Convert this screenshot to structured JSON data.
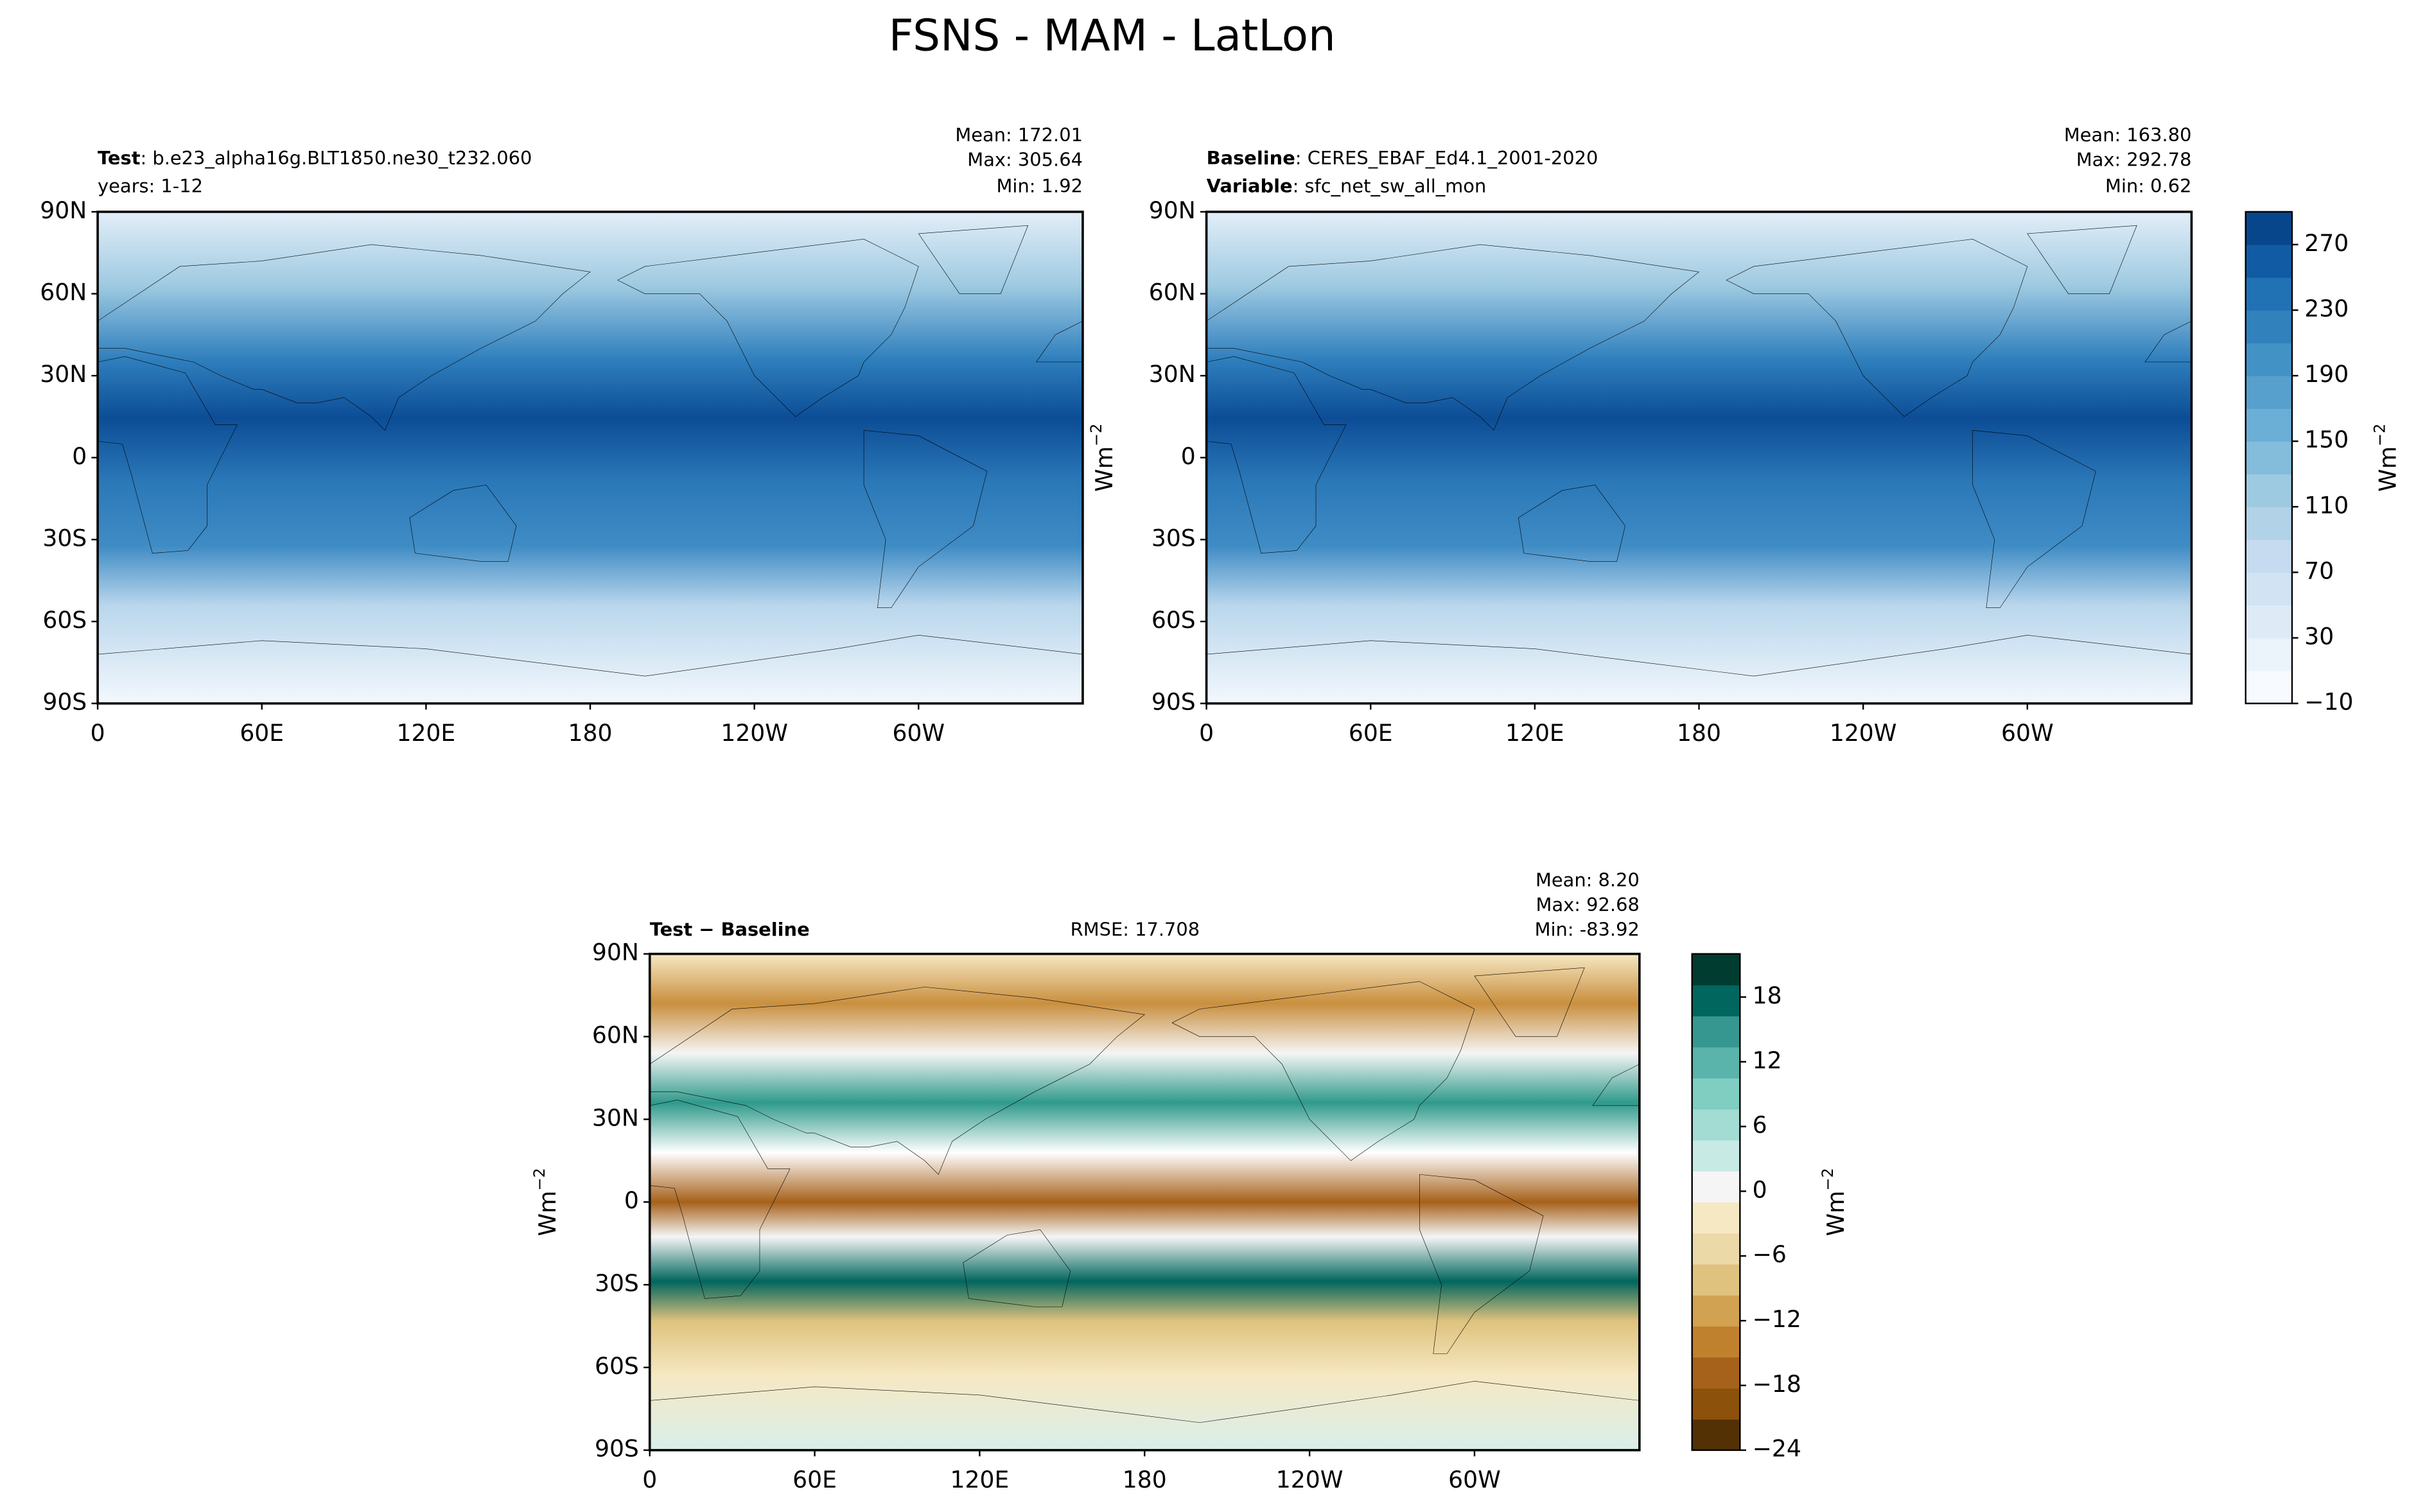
{
  "title": "FSNS - MAM - LatLon",
  "units": {
    "base": "Wm",
    "exp": "−2"
  },
  "map_axes": {
    "xlim": [
      0,
      360
    ],
    "ylim": [
      -90,
      90
    ],
    "xticks": [
      0,
      {
        "value": 60,
        "label": "60E"
      },
      {
        "value": 120,
        "label": "120E"
      },
      180,
      {
        "value": 240,
        "label": "120W"
      },
      {
        "value": 300,
        "label": "60W"
      }
    ],
    "yticks": [
      {
        "value": 90,
        "label": "90N"
      },
      {
        "value": 60,
        "label": "60N"
      },
      {
        "value": 30,
        "label": "30N"
      },
      0,
      {
        "value": -30,
        "label": "30S"
      },
      {
        "value": -60,
        "label": "60S"
      },
      {
        "value": -90,
        "label": "90S"
      }
    ]
  },
  "panels": [
    {
      "lines": [
        {
          "key": "Test",
          "text": ": b.e23_alpha16g.BLT1850.ne30_t232.060"
        },
        {
          "text": "years: 1-12"
        }
      ],
      "stats": [
        "Mean: 172.01",
        "Max: 305.64",
        "Min:  1.92"
      ]
    },
    {
      "lines": [
        {
          "key": "Baseline",
          "text": ": CERES_EBAF_Ed4.1_2001-2020"
        },
        {
          "key": "Variable",
          "text": ": sfc_net_sw_all_mon"
        }
      ],
      "stats": [
        "Mean: 163.80",
        "Max: 292.78",
        "Min:  0.62"
      ]
    },
    {
      "lines": [
        {
          "key": "Test − Baseline"
        }
      ],
      "rmse": "RMSE: 17.708",
      "stats": [
        "Mean:  8.20",
        "Max: 92.68",
        "Min: -83.92"
      ]
    }
  ],
  "colorbars": [
    {
      "lim": [
        -10,
        290
      ],
      "ticks": [
        {
          "value": -10,
          "label": "−10"
        },
        30,
        70,
        110,
        150,
        190,
        230,
        270
      ],
      "colors": [
        "#f7fbff",
        "#ebf3fb",
        "#deebf7",
        "#d2e3f3",
        "#c6dbef",
        "#b2d2e8",
        "#9ecae1",
        "#84bcdb",
        "#6baed6",
        "#57a0ce",
        "#4292c6",
        "#3181bd",
        "#2171b5",
        "#105ba4",
        "#08468b"
      ]
    },
    {
      "lim": [
        -24,
        22
      ],
      "ticks": [
        {
          "value": -24,
          "label": "−24"
        },
        {
          "value": -18,
          "label": "−18"
        },
        {
          "value": -12,
          "label": "−12"
        },
        {
          "value": -6,
          "label": "−6"
        },
        0,
        6,
        12,
        18
      ],
      "colors": [
        "#543005",
        "#8c510a",
        "#a6611a",
        "#bf812d",
        "#d1a251",
        "#dfc27d",
        "#ecd9a8",
        "#f6e8c3",
        "#f5f5f5",
        "#c7eae5",
        "#a2dcd3",
        "#80cdc1",
        "#5ab4ac",
        "#35978f",
        "#01665e",
        "#003c30"
      ]
    }
  ]
}
